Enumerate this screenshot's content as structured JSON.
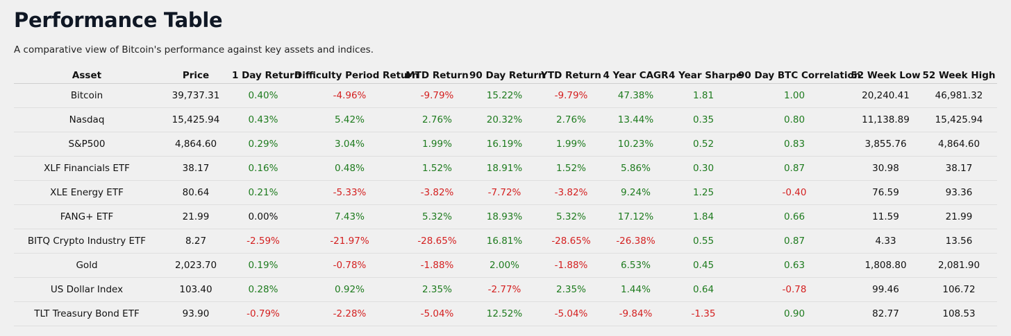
{
  "header": {
    "title": "Performance Table",
    "subtitle": "A comparative view of Bitcoin's performance against key assets and indices."
  },
  "table": {
    "positive_color": "#1e7b1e",
    "negative_color": "#d42020",
    "columns": [
      {
        "label": "Asset",
        "signed": false
      },
      {
        "label": "Price",
        "signed": false
      },
      {
        "label": "1 Day Return",
        "signed": true
      },
      {
        "label": "Difficulty Period Return",
        "signed": true
      },
      {
        "label": "MTD Return",
        "signed": true
      },
      {
        "label": "90 Day Return",
        "signed": true
      },
      {
        "label": "YTD Return",
        "signed": true
      },
      {
        "label": "4 Year CAGR",
        "signed": true
      },
      {
        "label": "4 Year Sharpe",
        "signed": true
      },
      {
        "label": "90 Day BTC Correlation",
        "signed": true
      },
      {
        "label": "52 Week Low",
        "signed": false
      },
      {
        "label": "52 Week High",
        "signed": false
      }
    ],
    "rows": [
      [
        "Bitcoin",
        "39,737.31",
        "0.40%",
        "-4.96%",
        "-9.79%",
        "15.22%",
        "-9.79%",
        "47.38%",
        "1.81",
        "1.00",
        "20,240.41",
        "46,981.32"
      ],
      [
        "Nasdaq",
        "15,425.94",
        "0.43%",
        "5.42%",
        "2.76%",
        "20.32%",
        "2.76%",
        "13.44%",
        "0.35",
        "0.80",
        "11,138.89",
        "15,425.94"
      ],
      [
        "S&P500",
        "4,864.60",
        "0.29%",
        "3.04%",
        "1.99%",
        "16.19%",
        "1.99%",
        "10.23%",
        "0.52",
        "0.83",
        "3,855.76",
        "4,864.60"
      ],
      [
        "XLF Financials ETF",
        "38.17",
        "0.16%",
        "0.48%",
        "1.52%",
        "18.91%",
        "1.52%",
        "5.86%",
        "0.30",
        "0.87",
        "30.98",
        "38.17"
      ],
      [
        "XLE Energy ETF",
        "80.64",
        "0.21%",
        "-5.33%",
        "-3.82%",
        "-7.72%",
        "-3.82%",
        "9.24%",
        "1.25",
        "-0.40",
        "76.59",
        "93.36"
      ],
      [
        "FANG+ ETF",
        "21.99",
        "0.00%",
        "7.43%",
        "5.32%",
        "18.93%",
        "5.32%",
        "17.12%",
        "1.84",
        "0.66",
        "11.59",
        "21.99"
      ],
      [
        "BITQ Crypto Industry ETF",
        "8.27",
        "-2.59%",
        "-21.97%",
        "-28.65%",
        "16.81%",
        "-28.65%",
        "-26.38%",
        "0.55",
        "0.87",
        "4.33",
        "13.56"
      ],
      [
        "Gold",
        "2,023.70",
        "0.19%",
        "-0.78%",
        "-1.88%",
        "2.00%",
        "-1.88%",
        "6.53%",
        "0.45",
        "0.63",
        "1,808.80",
        "2,081.90"
      ],
      [
        "US Dollar Index",
        "103.40",
        "0.28%",
        "0.92%",
        "2.35%",
        "-2.77%",
        "2.35%",
        "1.44%",
        "0.64",
        "-0.78",
        "99.46",
        "106.72"
      ],
      [
        "TLT Treasury Bond ETF",
        "93.90",
        "-0.79%",
        "-2.28%",
        "-5.04%",
        "12.52%",
        "-5.04%",
        "-9.84%",
        "-1.35",
        "0.90",
        "82.77",
        "108.53"
      ]
    ]
  }
}
